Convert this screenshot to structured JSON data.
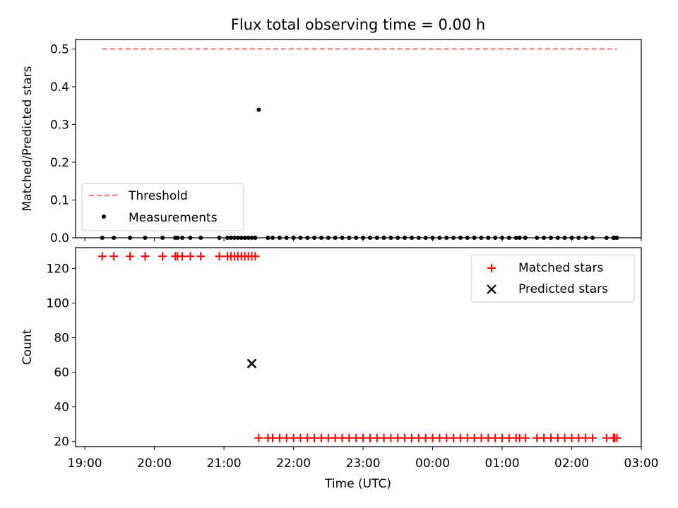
{
  "colors": {
    "threshold": "#f08080",
    "matched": "#ff0000",
    "predicted": "#000000",
    "measurement": "#000000",
    "axes": "#000000",
    "background": "#ffffff"
  },
  "chart_data": [
    {
      "type": "scatter",
      "title": "Flux total observing time = 0.00 h",
      "xlabel": "",
      "ylabel": "Matched/Predicted stars",
      "xlim": [
        "2000-01-01T18:52:00",
        "2000-01-02T03:00:00"
      ],
      "ylim": [
        0,
        0.525
      ],
      "x_axis_type": "time",
      "x_tick_labels": [],
      "y_ticks": [
        0.0,
        0.1,
        0.2,
        0.3,
        0.4,
        0.5
      ],
      "y_tick_labels": [
        "0.0",
        "0.1",
        "0.2",
        "0.3",
        "0.4",
        "0.5"
      ],
      "legend_position": "lower-left",
      "grid": false,
      "series": [
        {
          "name": "Threshold",
          "kind": "line",
          "style": "dashed",
          "color": "#f08080",
          "x": [
            "2000-01-01T19:15:00",
            "2000-01-02T02:39:00"
          ],
          "y": [
            0.5,
            0.5
          ]
        },
        {
          "name": "Measurements",
          "kind": "scatter",
          "marker": "dot",
          "color": "#000000",
          "x": [
            "2000-01-01T19:15:00",
            "2000-01-01T19:25:00",
            "2000-01-01T19:39:00",
            "2000-01-01T19:52:00",
            "2000-01-01T20:07:00",
            "2000-01-01T20:18:00",
            "2000-01-01T20:20:00",
            "2000-01-01T20:24:00",
            "2000-01-01T20:31:00",
            "2000-01-01T20:40:00",
            "2000-01-01T20:56:00",
            "2000-01-01T21:03:00",
            "2000-01-01T21:06:00",
            "2000-01-01T21:09:00",
            "2000-01-01T21:12:00",
            "2000-01-01T21:15:00",
            "2000-01-01T21:18:00",
            "2000-01-01T21:21:00",
            "2000-01-01T21:24:00",
            "2000-01-01T21:27:00",
            "2000-01-01T21:30:00",
            "2000-01-01T21:38:00",
            "2000-01-01T21:42:00",
            "2000-01-01T21:48:00",
            "2000-01-01T21:54:00",
            "2000-01-01T22:00:00",
            "2000-01-01T22:06:00",
            "2000-01-01T22:12:00",
            "2000-01-01T22:18:00",
            "2000-01-01T22:24:00",
            "2000-01-01T22:30:00",
            "2000-01-01T22:36:00",
            "2000-01-01T22:42:00",
            "2000-01-01T22:48:00",
            "2000-01-01T22:54:00",
            "2000-01-01T23:00:00",
            "2000-01-01T23:06:00",
            "2000-01-01T23:12:00",
            "2000-01-01T23:18:00",
            "2000-01-01T23:24:00",
            "2000-01-01T23:30:00",
            "2000-01-01T23:36:00",
            "2000-01-01T23:42:00",
            "2000-01-01T23:48:00",
            "2000-01-01T23:54:00",
            "2000-01-02T00:00:00",
            "2000-01-02T00:06:00",
            "2000-01-02T00:12:00",
            "2000-01-02T00:18:00",
            "2000-01-02T00:24:00",
            "2000-01-02T00:30:00",
            "2000-01-02T00:36:00",
            "2000-01-02T00:42:00",
            "2000-01-02T00:48:00",
            "2000-01-02T00:54:00",
            "2000-01-02T01:00:00",
            "2000-01-02T01:06:00",
            "2000-01-02T01:12:00",
            "2000-01-02T01:15:00",
            "2000-01-02T01:20:00",
            "2000-01-02T01:30:00",
            "2000-01-02T01:36:00",
            "2000-01-02T01:42:00",
            "2000-01-02T01:48:00",
            "2000-01-02T01:54:00",
            "2000-01-02T02:00:00",
            "2000-01-02T02:06:00",
            "2000-01-02T02:12:00",
            "2000-01-02T02:18:00",
            "2000-01-02T02:30:00",
            "2000-01-02T02:36:00",
            "2000-01-02T02:37:00",
            "2000-01-02T02:39:00"
          ],
          "y": [
            0,
            0,
            0,
            0,
            0,
            0,
            0,
            0,
            0,
            0,
            0,
            0,
            0,
            0,
            0,
            0,
            0,
            0,
            0,
            0,
            0.339,
            0,
            0,
            0,
            0,
            0,
            0,
            0,
            0,
            0,
            0,
            0,
            0,
            0,
            0,
            0,
            0,
            0,
            0,
            0,
            0,
            0,
            0,
            0,
            0,
            0,
            0,
            0,
            0,
            0,
            0,
            0,
            0,
            0,
            0,
            0,
            0,
            0,
            0,
            0,
            0,
            0,
            0,
            0,
            0,
            0,
            0,
            0,
            0,
            0,
            0,
            0,
            0
          ]
        }
      ]
    },
    {
      "type": "scatter",
      "title": "",
      "xlabel": "Time (UTC)",
      "ylabel": "Count",
      "xlim": [
        "2000-01-01T18:52:00",
        "2000-01-02T03:00:00"
      ],
      "ylim": [
        17,
        132
      ],
      "x_axis_type": "time",
      "x_ticks": [
        "2000-01-01T19:00:00",
        "2000-01-01T20:00:00",
        "2000-01-01T21:00:00",
        "2000-01-01T22:00:00",
        "2000-01-01T23:00:00",
        "2000-01-02T00:00:00",
        "2000-01-02T01:00:00",
        "2000-01-02T02:00:00",
        "2000-01-02T03:00:00"
      ],
      "x_tick_labels": [
        "19:00",
        "20:00",
        "21:00",
        "22:00",
        "23:00",
        "00:00",
        "01:00",
        "02:00",
        "03:00"
      ],
      "y_ticks": [
        20,
        40,
        60,
        80,
        100,
        120
      ],
      "y_tick_labels": [
        "20",
        "40",
        "60",
        "80",
        "100",
        "120"
      ],
      "legend_position": "upper-right",
      "grid": false,
      "series": [
        {
          "name": "Matched stars",
          "kind": "scatter",
          "marker": "plus",
          "color": "#ff0000",
          "x": [
            "2000-01-01T19:15:00",
            "2000-01-01T19:25:00",
            "2000-01-01T19:39:00",
            "2000-01-01T19:52:00",
            "2000-01-01T20:07:00",
            "2000-01-01T20:18:00",
            "2000-01-01T20:20:00",
            "2000-01-01T20:24:00",
            "2000-01-01T20:31:00",
            "2000-01-01T20:40:00",
            "2000-01-01T20:56:00",
            "2000-01-01T21:03:00",
            "2000-01-01T21:06:00",
            "2000-01-01T21:09:00",
            "2000-01-01T21:12:00",
            "2000-01-01T21:15:00",
            "2000-01-01T21:18:00",
            "2000-01-01T21:21:00",
            "2000-01-01T21:24:00",
            "2000-01-01T21:27:00",
            "2000-01-01T21:30:00",
            "2000-01-01T21:38:00",
            "2000-01-01T21:42:00",
            "2000-01-01T21:48:00",
            "2000-01-01T21:54:00",
            "2000-01-01T22:00:00",
            "2000-01-01T22:06:00",
            "2000-01-01T22:12:00",
            "2000-01-01T22:18:00",
            "2000-01-01T22:24:00",
            "2000-01-01T22:30:00",
            "2000-01-01T22:36:00",
            "2000-01-01T22:42:00",
            "2000-01-01T22:48:00",
            "2000-01-01T22:54:00",
            "2000-01-01T23:00:00",
            "2000-01-01T23:06:00",
            "2000-01-01T23:12:00",
            "2000-01-01T23:18:00",
            "2000-01-01T23:24:00",
            "2000-01-01T23:30:00",
            "2000-01-01T23:36:00",
            "2000-01-01T23:42:00",
            "2000-01-01T23:48:00",
            "2000-01-01T23:54:00",
            "2000-01-02T00:00:00",
            "2000-01-02T00:06:00",
            "2000-01-02T00:12:00",
            "2000-01-02T00:18:00",
            "2000-01-02T00:24:00",
            "2000-01-02T00:30:00",
            "2000-01-02T00:36:00",
            "2000-01-02T00:42:00",
            "2000-01-02T00:48:00",
            "2000-01-02T00:54:00",
            "2000-01-02T01:00:00",
            "2000-01-02T01:06:00",
            "2000-01-02T01:12:00",
            "2000-01-02T01:15:00",
            "2000-01-02T01:20:00",
            "2000-01-02T01:30:00",
            "2000-01-02T01:36:00",
            "2000-01-02T01:42:00",
            "2000-01-02T01:48:00",
            "2000-01-02T01:54:00",
            "2000-01-02T02:00:00",
            "2000-01-02T02:06:00",
            "2000-01-02T02:12:00",
            "2000-01-02T02:18:00",
            "2000-01-02T02:30:00",
            "2000-01-02T02:36:00",
            "2000-01-02T02:37:00",
            "2000-01-02T02:39:00"
          ],
          "y": [
            127,
            127,
            127,
            127,
            127,
            127,
            127,
            127,
            127,
            127,
            127,
            127,
            127,
            127,
            127,
            127,
            127,
            127,
            127,
            127,
            22,
            22,
            22,
            22,
            22,
            22,
            22,
            22,
            22,
            22,
            22,
            22,
            22,
            22,
            22,
            22,
            22,
            22,
            22,
            22,
            22,
            22,
            22,
            22,
            22,
            22,
            22,
            22,
            22,
            22,
            22,
            22,
            22,
            22,
            22,
            22,
            22,
            22,
            22,
            22,
            22,
            22,
            22,
            22,
            22,
            22,
            22,
            22,
            22,
            22,
            22,
            22,
            22
          ]
        },
        {
          "name": "Predicted stars",
          "kind": "scatter",
          "marker": "x",
          "color": "#000000",
          "x": [
            "2000-01-01T21:24:00"
          ],
          "y": [
            65
          ]
        }
      ]
    }
  ]
}
